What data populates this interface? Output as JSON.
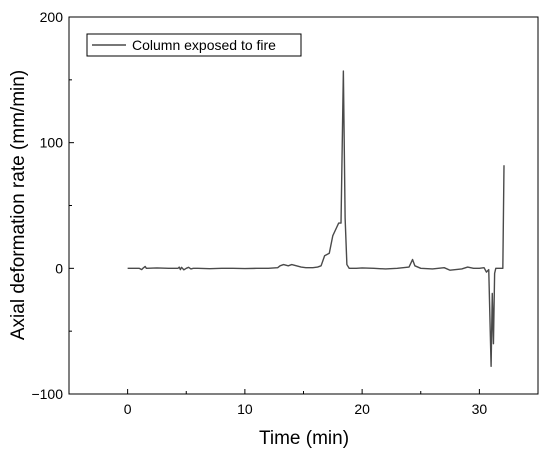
{
  "chart_data": {
    "type": "line",
    "title": "",
    "xlabel": "Time (min)",
    "ylabel": "Axial deformation rate (mm/min)",
    "xlim": [
      -5,
      35
    ],
    "ylim": [
      -100,
      200
    ],
    "xticks": [
      0,
      10,
      20,
      30
    ],
    "yticks": [
      -100,
      0,
      100,
      200
    ],
    "grid": false,
    "legend_position": "top-left",
    "series": [
      {
        "name": "Column exposed to fire",
        "color": "#4a4a4a",
        "points": [
          [
            0,
            0
          ],
          [
            0.5,
            0
          ],
          [
            1.0,
            0
          ],
          [
            1.2,
            -1
          ],
          [
            1.3,
            0
          ],
          [
            1.5,
            1.5
          ],
          [
            1.6,
            0
          ],
          [
            2.5,
            0.3
          ],
          [
            3.5,
            0
          ],
          [
            4.3,
            0
          ],
          [
            4.4,
            1
          ],
          [
            4.5,
            -1
          ],
          [
            4.6,
            0.8
          ],
          [
            4.8,
            -1.2
          ],
          [
            5.0,
            0
          ],
          [
            5.2,
            0.8
          ],
          [
            5.4,
            -0.5
          ],
          [
            5.6,
            0
          ],
          [
            6.0,
            0
          ],
          [
            7.0,
            -0.3
          ],
          [
            8.0,
            0
          ],
          [
            9.0,
            0
          ],
          [
            10.0,
            -0.2
          ],
          [
            11.0,
            0
          ],
          [
            12.0,
            0
          ],
          [
            12.8,
            0.5
          ],
          [
            13.0,
            2
          ],
          [
            13.3,
            3
          ],
          [
            13.7,
            2
          ],
          [
            14.0,
            3
          ],
          [
            14.4,
            2
          ],
          [
            14.8,
            1
          ],
          [
            15.2,
            0.5
          ],
          [
            15.8,
            0.5
          ],
          [
            16.2,
            1
          ],
          [
            16.5,
            2
          ],
          [
            16.8,
            10
          ],
          [
            17.2,
            12
          ],
          [
            17.5,
            26
          ],
          [
            17.8,
            32
          ],
          [
            18.0,
            36
          ],
          [
            18.2,
            36
          ],
          [
            18.4,
            157
          ],
          [
            18.55,
            40
          ],
          [
            18.7,
            3
          ],
          [
            18.9,
            0
          ],
          [
            19.5,
            0
          ],
          [
            20.0,
            0.3
          ],
          [
            21.0,
            0
          ],
          [
            22.0,
            -0.5
          ],
          [
            23.0,
            0
          ],
          [
            24.0,
            1
          ],
          [
            24.3,
            7
          ],
          [
            24.5,
            2
          ],
          [
            25.0,
            0
          ],
          [
            26.0,
            -0.5
          ],
          [
            27.0,
            0.5
          ],
          [
            27.5,
            -1.5
          ],
          [
            28.0,
            -1
          ],
          [
            28.5,
            -0.5
          ],
          [
            29.0,
            1
          ],
          [
            29.5,
            0
          ],
          [
            30.0,
            0
          ],
          [
            30.4,
            0.5
          ],
          [
            30.6,
            -3
          ],
          [
            30.8,
            -1
          ],
          [
            31.0,
            -78
          ],
          [
            31.1,
            -20
          ],
          [
            31.2,
            -60
          ],
          [
            31.3,
            -4
          ],
          [
            31.4,
            0
          ],
          [
            31.7,
            0
          ],
          [
            32.0,
            0
          ],
          [
            32.1,
            82
          ]
        ]
      }
    ]
  }
}
